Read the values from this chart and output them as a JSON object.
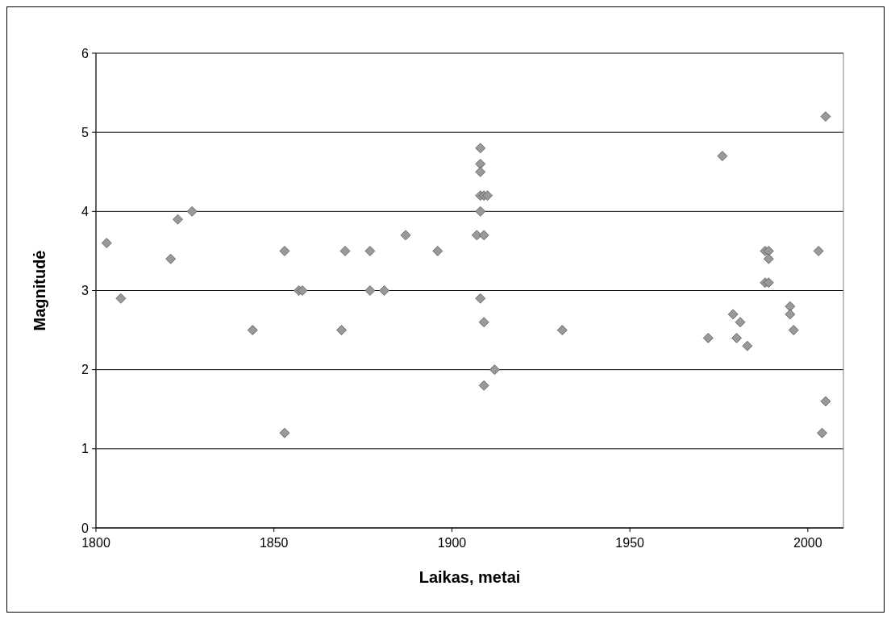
{
  "chart_data": {
    "type": "scatter",
    "xlabel": "Laikas, metai",
    "ylabel": "Magnitudė",
    "xlim": [
      1800,
      2010
    ],
    "xticks": [
      1800,
      1850,
      1900,
      1950,
      2000
    ],
    "ylim": [
      0,
      6
    ],
    "yticks": [
      0,
      1,
      2,
      3,
      4,
      5,
      6
    ],
    "grid": "y",
    "marker": "diamond",
    "series": [
      {
        "color": "#999999",
        "x": [
          1803,
          1807,
          1821,
          1823,
          1827,
          1844,
          1853,
          1853,
          1857,
          1858,
          1869,
          1870,
          1877,
          1877,
          1881,
          1887,
          1896,
          1907,
          1908,
          1908,
          1908,
          1908,
          1908,
          1908,
          1909,
          1909,
          1909,
          1909,
          1910,
          1912,
          1931,
          1972,
          1976,
          1979,
          1980,
          1981,
          1983,
          1988,
          1988,
          1989,
          1989,
          1989,
          1995,
          1995,
          1996,
          2003,
          2004,
          2005,
          2005
        ],
        "values": [
          3.6,
          2.9,
          3.4,
          3.9,
          4.0,
          2.5,
          3.5,
          1.2,
          3.0,
          3.0,
          2.5,
          3.5,
          3.5,
          3.0,
          3.0,
          3.7,
          3.5,
          3.7,
          4.8,
          4.6,
          4.5,
          4.2,
          4.0,
          2.9,
          4.2,
          3.7,
          2.6,
          1.8,
          4.2,
          2.0,
          2.5,
          2.4,
          4.7,
          2.7,
          2.4,
          2.6,
          2.3,
          3.5,
          3.1,
          3.5,
          3.4,
          3.1,
          2.8,
          2.7,
          2.5,
          3.5,
          1.2,
          5.2,
          1.6
        ]
      }
    ]
  }
}
